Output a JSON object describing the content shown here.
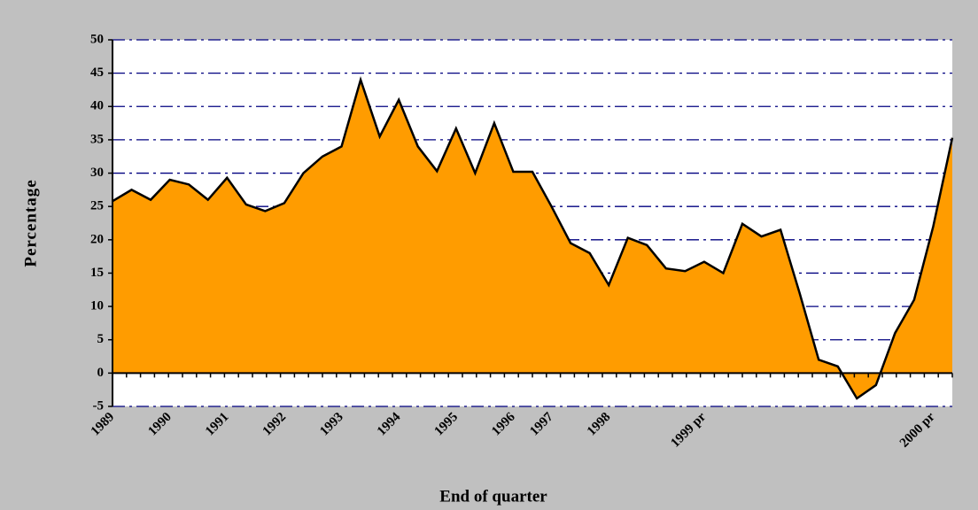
{
  "chart_data": {
    "type": "area",
    "x_label": "End of quarter",
    "y_label": "Percentage",
    "categories": [
      "1989",
      null,
      null,
      "1990",
      null,
      null,
      "1991",
      null,
      null,
      "1992",
      null,
      null,
      "1993",
      null,
      null,
      "1994",
      null,
      null,
      "1995",
      null,
      null,
      "1996",
      null,
      "1997",
      null,
      null,
      "1998",
      null,
      null,
      null,
      null,
      "1999 pr",
      null,
      null,
      null,
      null,
      null,
      null,
      null,
      null,
      null,
      null,
      null,
      "2000 pr",
      null
    ],
    "series": [
      {
        "name": "Percentage",
        "color": "#ff9c00",
        "values": [
          25.8,
          27.5,
          26,
          29,
          28.3,
          26,
          29.3,
          25.3,
          24.3,
          25.5,
          30,
          32.5,
          34,
          44,
          35.5,
          41,
          34,
          30.3,
          36.7,
          30,
          37.5,
          30.2,
          30.2,
          25,
          19.5,
          18,
          13.2,
          20.3,
          19.2,
          15.7,
          15.3,
          16.7,
          15,
          22.4,
          20.5,
          21.5,
          12,
          2,
          1,
          -3.8,
          -1.8,
          6,
          11,
          22,
          35.3
        ]
      }
    ],
    "ylim": [
      -5,
      50
    ],
    "yticks": [
      -5,
      0,
      5,
      10,
      15,
      20,
      25,
      30,
      35,
      40,
      45,
      50
    ],
    "grid": true
  }
}
